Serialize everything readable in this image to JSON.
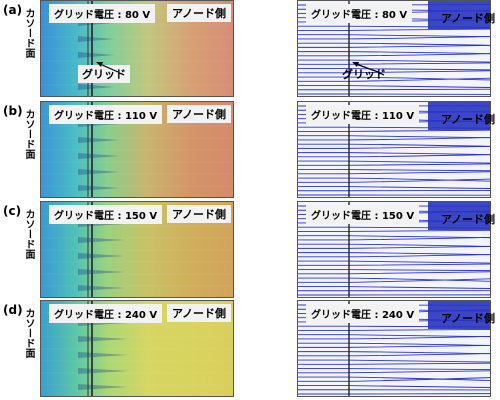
{
  "labels": {
    "cathode": "カソード面",
    "anode": "アノード側",
    "grid": "グリッド"
  },
  "rows": [
    {
      "label": "(a)",
      "voltage": "グリッド電圧 : 80 V",
      "colors": [
        "#3b8fd8",
        "#48b9c8",
        "#7ccf9c",
        "#c2c77e",
        "#d7a074",
        "#d88b77"
      ]
    },
    {
      "label": "(b)",
      "voltage": "グリッド電圧 : 110 V",
      "colors": [
        "#3b95d6",
        "#4bbfc1",
        "#87cf8c",
        "#c9b46e",
        "#d49468",
        "#d58a6a"
      ]
    },
    {
      "label": "(c)",
      "voltage": "グリッド電圧 : 150 V",
      "colors": [
        "#3b99d4",
        "#50c2b6",
        "#9bd27f",
        "#c9c266",
        "#d0ae5c",
        "#d2a35c"
      ]
    },
    {
      "label": "(d)",
      "voltage": "グリッド電圧 : 240 V",
      "colors": [
        "#3aa0d0",
        "#5cc7a4",
        "#a9d876",
        "#d6d663",
        "#d9d35f",
        "#dace5c"
      ]
    }
  ]
}
